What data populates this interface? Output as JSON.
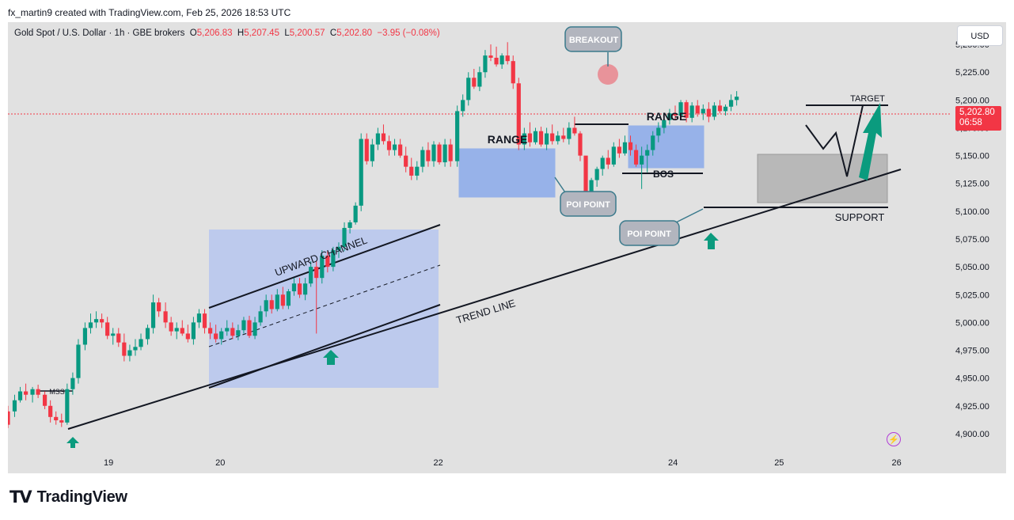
{
  "caption": "fx_martin9 created with TradingView.com, Feb 25, 2026 18:53 UTC",
  "legend": {
    "symbol": "Gold Spot / U.S. Dollar · 1h · GBE brokers",
    "o_key": "O",
    "o_val": "5,206.83",
    "h_key": "H",
    "h_val": "5,207.45",
    "l_key": "L",
    "l_val": "5,200.57",
    "c_key": "C",
    "c_val": "5,202.80",
    "change": "−3.95 (−0.08%)"
  },
  "currency": "USD",
  "last_price": {
    "price": "5,202.80",
    "countdown": "06:58"
  },
  "brand": "TradingView",
  "colors": {
    "up": "#089981",
    "down": "#f23645",
    "range_box": "#5b8cf0",
    "channel_box": "#a9bdf2",
    "zone_box": "#b8b8b8",
    "arrow": "#0b9b7e",
    "callout": "#b2b5be"
  },
  "chart_data": {
    "type": "candlestick",
    "timeframe": "1h",
    "ylim": [
      4880,
      5270
    ],
    "y_ticks": [
      4900,
      4925,
      4950,
      4975,
      5000,
      5025,
      5050,
      5075,
      5100,
      5125,
      5150,
      5175,
      5200,
      5225,
      5250
    ],
    "y_tick_labels": [
      "4,900.00",
      "4,925.00",
      "4,950.00",
      "4,975.00",
      "5,000.00",
      "5,025.00",
      "5,050.00",
      "5,075.00",
      "5,100.00",
      "5,125.00",
      "5,150.00",
      "5,175.00",
      "5,200.00",
      "5,225.00",
      "5,250.00"
    ],
    "x_tick_labels": [
      "19",
      "20",
      "22",
      "24",
      "25",
      "26"
    ],
    "x_tick_positions": [
      18.9,
      19.9,
      21.85,
      23.95,
      24.9,
      25.95
    ],
    "xlim": [
      18.0,
      26.3
    ],
    "candles": [
      [
        18.0,
        4920,
        4925,
        4905,
        4908
      ],
      [
        18.06,
        4920,
        4935,
        4915,
        4930
      ],
      [
        18.11,
        4930,
        4942,
        4928,
        4938
      ],
      [
        18.16,
        4938,
        4945,
        4930,
        4935
      ],
      [
        18.22,
        4935,
        4942,
        4928,
        4940
      ],
      [
        18.27,
        4940,
        4944,
        4932,
        4935
      ],
      [
        18.33,
        4935,
        4938,
        4922,
        4925
      ],
      [
        18.38,
        4925,
        4930,
        4910,
        4915
      ],
      [
        18.43,
        4915,
        4920,
        4908,
        4912
      ],
      [
        18.48,
        4912,
        4918,
        4906,
        4910
      ],
      [
        18.53,
        4910,
        4945,
        4908,
        4940
      ],
      [
        18.58,
        4940,
        4955,
        4935,
        4950
      ],
      [
        18.63,
        4950,
        4985,
        4945,
        4980
      ],
      [
        18.69,
        4980,
        5000,
        4975,
        4995
      ],
      [
        18.74,
        4995,
        5008,
        4990,
        5000
      ],
      [
        18.79,
        5000,
        5010,
        4995,
        5003
      ],
      [
        18.84,
        5003,
        5008,
        4995,
        5000
      ],
      [
        18.89,
        5000,
        5005,
        4985,
        4988
      ],
      [
        18.94,
        4988,
        4995,
        4980,
        4990
      ],
      [
        18.99,
        4990,
        4995,
        4978,
        4982
      ],
      [
        19.04,
        4982,
        4990,
        4965,
        4970
      ],
      [
        19.09,
        4970,
        4980,
        4965,
        4975
      ],
      [
        19.14,
        4975,
        4985,
        4970,
        4978
      ],
      [
        19.19,
        4978,
        4990,
        4975,
        4985
      ],
      [
        19.25,
        4985,
        4998,
        4980,
        4995
      ],
      [
        19.3,
        4995,
        5025,
        4990,
        5018
      ],
      [
        19.35,
        5018,
        5022,
        5005,
        5010
      ],
      [
        19.41,
        5010,
        5018,
        4995,
        5000
      ],
      [
        19.46,
        5000,
        5005,
        4988,
        4992
      ],
      [
        19.51,
        4992,
        5000,
        4985,
        4995
      ],
      [
        19.56,
        4995,
        5002,
        4988,
        4990
      ],
      [
        19.61,
        4990,
        4998,
        4982,
        4985
      ],
      [
        19.66,
        4985,
        5005,
        4980,
        5000
      ],
      [
        19.71,
        5000,
        5012,
        4995,
        5008
      ],
      [
        19.76,
        5008,
        5012,
        4990,
        4995
      ],
      [
        19.81,
        4995,
        5000,
        4985,
        4990
      ],
      [
        19.86,
        4990,
        4998,
        4982,
        4985
      ],
      [
        19.91,
        4985,
        4995,
        4980,
        4992
      ],
      [
        19.96,
        4992,
        5002,
        4988,
        4995
      ],
      [
        20.01,
        4995,
        5000,
        4985,
        4988
      ],
      [
        20.06,
        4988,
        4998,
        4984,
        4993
      ],
      [
        20.11,
        4993,
        5005,
        4990,
        5002
      ],
      [
        20.16,
        5002,
        5006,
        4986,
        4988
      ],
      [
        20.21,
        4988,
        5005,
        4985,
        5000
      ],
      [
        20.26,
        5000,
        5015,
        4997,
        5010
      ],
      [
        20.31,
        5010,
        5025,
        5005,
        5020
      ],
      [
        20.36,
        5020,
        5025,
        5008,
        5012
      ],
      [
        20.41,
        5012,
        5030,
        5010,
        5025
      ],
      [
        20.46,
        5025,
        5032,
        5012,
        5015
      ],
      [
        20.51,
        5015,
        5030,
        5012,
        5028
      ],
      [
        20.56,
        5028,
        5040,
        5024,
        5035
      ],
      [
        20.61,
        5035,
        5040,
        5022,
        5025
      ],
      [
        20.66,
        5025,
        5040,
        5020,
        5035
      ],
      [
        20.71,
        5035,
        5055,
        5032,
        5050
      ],
      [
        20.76,
        5050,
        5055,
        4990,
        5040
      ],
      [
        20.81,
        5040,
        5065,
        5035,
        5060
      ],
      [
        20.86,
        5060,
        5064,
        5045,
        5050
      ],
      [
        20.91,
        5050,
        5068,
        5046,
        5065
      ],
      [
        20.96,
        5065,
        5072,
        5058,
        5068
      ],
      [
        21.01,
        5068,
        5090,
        5064,
        5085
      ],
      [
        21.06,
        5085,
        5092,
        5080,
        5090
      ],
      [
        21.11,
        5090,
        5108,
        5088,
        5105
      ],
      [
        21.16,
        5105,
        5170,
        5100,
        5165
      ],
      [
        21.21,
        5165,
        5170,
        5142,
        5145
      ],
      [
        21.26,
        5145,
        5165,
        5140,
        5160
      ],
      [
        21.31,
        5160,
        5175,
        5155,
        5170
      ],
      [
        21.36,
        5170,
        5178,
        5160,
        5163
      ],
      [
        21.41,
        5163,
        5168,
        5150,
        5155
      ],
      [
        21.46,
        5155,
        5165,
        5150,
        5160
      ],
      [
        21.51,
        5160,
        5165,
        5148,
        5150
      ],
      [
        21.56,
        5150,
        5158,
        5135,
        5140
      ],
      [
        21.61,
        5140,
        5148,
        5128,
        5132
      ],
      [
        21.66,
        5132,
        5145,
        5128,
        5140
      ],
      [
        21.71,
        5140,
        5158,
        5135,
        5155
      ],
      [
        21.76,
        5155,
        5162,
        5140,
        5145
      ],
      [
        21.81,
        5145,
        5163,
        5140,
        5160
      ],
      [
        21.86,
        5160,
        5162,
        5142,
        5144
      ],
      [
        21.91,
        5144,
        5165,
        5140,
        5160
      ],
      [
        21.96,
        5160,
        5165,
        5140,
        5145
      ],
      [
        22.02,
        5145,
        5195,
        5140,
        5190
      ],
      [
        22.07,
        5190,
        5205,
        5185,
        5200
      ],
      [
        22.12,
        5200,
        5225,
        5195,
        5220
      ],
      [
        22.17,
        5220,
        5228,
        5210,
        5212
      ],
      [
        22.22,
        5212,
        5230,
        5208,
        5225
      ],
      [
        22.27,
        5225,
        5245,
        5220,
        5240
      ],
      [
        22.32,
        5240,
        5250,
        5235,
        5238
      ],
      [
        22.37,
        5238,
        5248,
        5230,
        5232
      ],
      [
        22.42,
        5232,
        5242,
        5228,
        5240
      ],
      [
        22.47,
        5240,
        5252,
        5232,
        5235
      ],
      [
        22.52,
        5235,
        5240,
        5210,
        5215
      ],
      [
        22.57,
        5215,
        5220,
        5155,
        5160
      ],
      [
        22.62,
        5160,
        5175,
        5155,
        5170
      ],
      [
        22.67,
        5170,
        5180,
        5158,
        5162
      ],
      [
        22.72,
        5162,
        5175,
        5160,
        5172
      ],
      [
        22.77,
        5172,
        5176,
        5158,
        5160
      ],
      [
        22.82,
        5160,
        5175,
        5155,
        5170
      ],
      [
        22.87,
        5170,
        5178,
        5160,
        5163
      ],
      [
        22.92,
        5163,
        5172,
        5160,
        5168
      ],
      [
        22.97,
        5168,
        5175,
        5162,
        5165
      ],
      [
        23.02,
        5165,
        5180,
        5160,
        5175
      ],
      [
        23.07,
        5175,
        5185,
        5168,
        5170
      ],
      [
        23.12,
        5170,
        5172,
        5145,
        5150
      ],
      [
        23.17,
        5150,
        5148,
        5112,
        5115
      ],
      [
        23.22,
        5115,
        5130,
        5110,
        5128
      ],
      [
        23.27,
        5128,
        5140,
        5122,
        5138
      ],
      [
        23.32,
        5138,
        5150,
        5132,
        5148
      ],
      [
        23.37,
        5148,
        5155,
        5138,
        5142
      ],
      [
        23.42,
        5142,
        5162,
        5140,
        5158
      ],
      [
        23.47,
        5158,
        5165,
        5148,
        5152
      ],
      [
        23.52,
        5152,
        5168,
        5150,
        5162
      ],
      [
        23.57,
        5162,
        5168,
        5150,
        5155
      ],
      [
        23.62,
        5155,
        5160,
        5140,
        5142
      ],
      [
        23.67,
        5142,
        5158,
        5120,
        5150
      ],
      [
        23.72,
        5150,
        5160,
        5135,
        5155
      ],
      [
        23.77,
        5155,
        5172,
        5150,
        5168
      ],
      [
        23.82,
        5168,
        5180,
        5162,
        5175
      ],
      [
        23.87,
        5175,
        5188,
        5170,
        5182
      ],
      [
        23.92,
        5182,
        5192,
        5178,
        5188
      ],
      [
        23.97,
        5188,
        5195,
        5182,
        5186
      ],
      [
        24.02,
        5186,
        5200,
        5184,
        5198
      ],
      [
        24.07,
        5198,
        5200,
        5180,
        5184
      ],
      [
        24.12,
        5184,
        5198,
        5180,
        5195
      ],
      [
        24.17,
        5195,
        5200,
        5185,
        5188
      ],
      [
        24.22,
        5188,
        5196,
        5182,
        5192
      ],
      [
        24.27,
        5192,
        5198,
        5180,
        5185
      ],
      [
        24.32,
        5185,
        5198,
        5182,
        5195
      ],
      [
        24.37,
        5195,
        5200,
        5188,
        5190
      ],
      [
        24.42,
        5190,
        5196,
        5186,
        5194
      ],
      [
        24.47,
        5194,
        5205,
        5190,
        5200
      ],
      [
        24.52,
        5200,
        5208,
        5195,
        5203
      ]
    ]
  },
  "annotations": {
    "breakout": "BREAKOUT",
    "range_1": "RANGE",
    "range_2": "RANGE",
    "poi_1": "POI POINT",
    "poi_2": "POI POINT",
    "bos": "BOS",
    "upward_channel": "UPWARD CHANNEL",
    "trend_line": "TREND LINE",
    "target": "TARGET",
    "support": "SUPPORT",
    "mss": "MSS"
  }
}
